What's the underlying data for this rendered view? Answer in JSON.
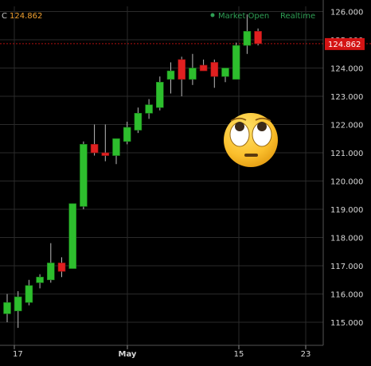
{
  "header": {
    "symbol_fragment": "C",
    "last_price": "124.862",
    "status_text": "Market Open",
    "realtime_text": "Realtime",
    "status_dot_color": "#2e9e54"
  },
  "price_tag": "124.862",
  "sticker": {
    "icon": "face-with-rolling-eyes-emoji"
  },
  "chart_data": {
    "type": "candlestick",
    "y_axis": {
      "range": [
        114.2,
        126.4
      ],
      "ticks": [
        115,
        116,
        117,
        118,
        119,
        120,
        121,
        122,
        123,
        124,
        125,
        126
      ],
      "tick_labels": [
        "115.000",
        "116.000",
        "117.000",
        "118.000",
        "119.000",
        "120.000",
        "121.000",
        "122.000",
        "123.000",
        "124.000",
        "125.000",
        "126.000"
      ],
      "side": "right"
    },
    "x_axis": {
      "tick_labels": [
        "17",
        "May",
        "15",
        "23"
      ]
    },
    "grid": true,
    "last_price_line": 124.862,
    "colors": {
      "up": "#2dbe2d",
      "down": "#e02020",
      "grid": "#2a2a2a",
      "price_line": "#b01010"
    },
    "candles": [
      {
        "open": 115.3,
        "high": 116.0,
        "low": 115.0,
        "close": 115.7
      },
      {
        "open": 115.4,
        "high": 116.1,
        "low": 114.8,
        "close": 115.9
      },
      {
        "open": 115.7,
        "high": 116.5,
        "low": 115.6,
        "close": 116.3
      },
      {
        "open": 116.4,
        "high": 116.7,
        "low": 116.2,
        "close": 116.6
      },
      {
        "open": 116.5,
        "high": 117.8,
        "low": 116.4,
        "close": 117.1
      },
      {
        "open": 117.1,
        "high": 117.3,
        "low": 116.6,
        "close": 116.8
      },
      {
        "open": 116.9,
        "high": 119.2,
        "low": 116.9,
        "close": 119.2
      },
      {
        "open": 119.1,
        "high": 121.4,
        "low": 119.0,
        "close": 121.3
      },
      {
        "open": 121.3,
        "high": 122.0,
        "low": 120.9,
        "close": 121.0
      },
      {
        "open": 121.0,
        "high": 122.0,
        "low": 120.7,
        "close": 120.9
      },
      {
        "open": 120.9,
        "high": 121.5,
        "low": 120.6,
        "close": 121.5
      },
      {
        "open": 121.4,
        "high": 122.1,
        "low": 121.3,
        "close": 121.9
      },
      {
        "open": 121.8,
        "high": 122.6,
        "low": 121.7,
        "close": 122.4
      },
      {
        "open": 122.4,
        "high": 122.9,
        "low": 122.2,
        "close": 122.7
      },
      {
        "open": 122.6,
        "high": 123.7,
        "low": 122.5,
        "close": 123.5
      },
      {
        "open": 123.6,
        "high": 124.2,
        "low": 123.1,
        "close": 123.9
      },
      {
        "open": 124.3,
        "high": 124.4,
        "low": 123.0,
        "close": 123.6
      },
      {
        "open": 123.6,
        "high": 124.5,
        "low": 123.4,
        "close": 124.0
      },
      {
        "open": 124.1,
        "high": 124.3,
        "low": 123.9,
        "close": 123.9
      },
      {
        "open": 124.2,
        "high": 124.3,
        "low": 123.3,
        "close": 123.7
      },
      {
        "open": 123.7,
        "high": 124.0,
        "low": 123.5,
        "close": 124.0
      },
      {
        "open": 123.6,
        "high": 124.9,
        "low": 123.6,
        "close": 124.8
      },
      {
        "open": 124.8,
        "high": 125.9,
        "low": 124.5,
        "close": 125.3
      },
      {
        "open": 125.3,
        "high": 125.4,
        "low": 124.8,
        "close": 124.862
      }
    ]
  }
}
